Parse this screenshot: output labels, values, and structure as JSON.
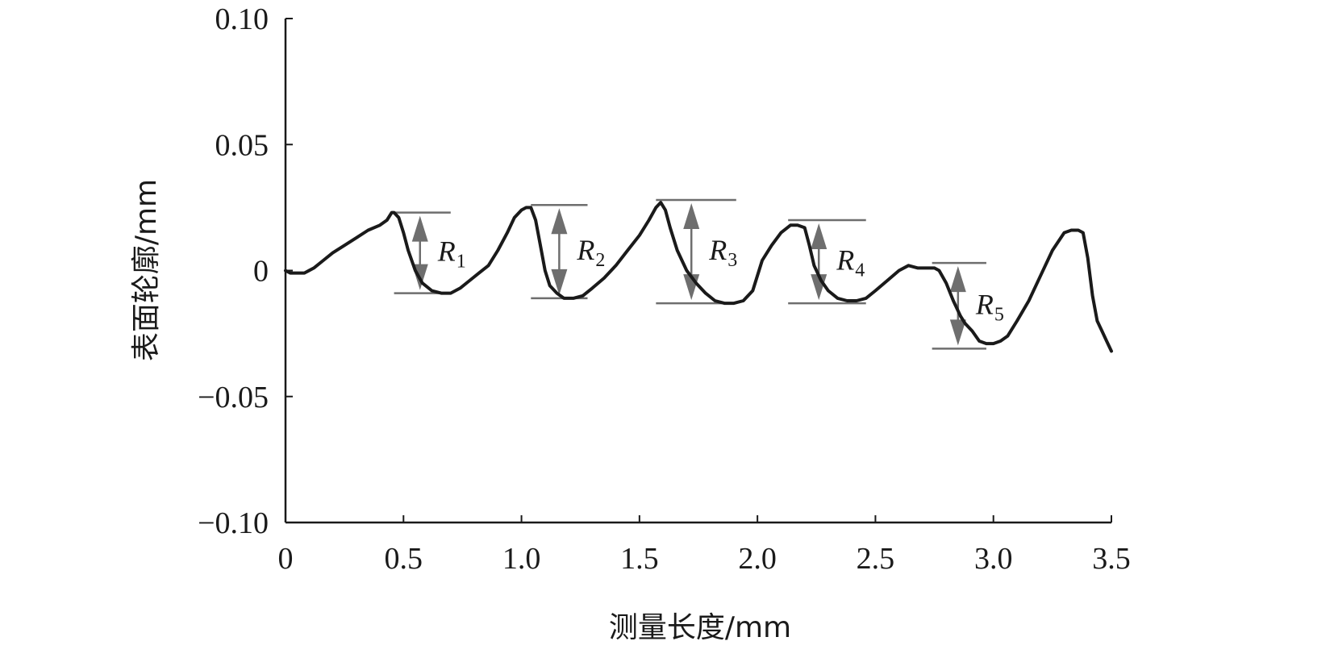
{
  "chart_data": {
    "type": "line",
    "xlabel": "测量长度/mm",
    "ylabel": "表面轮廓/mm",
    "xlim": [
      0,
      3.5
    ],
    "ylim": [
      -0.1,
      0.1
    ],
    "x_ticks": [
      "0",
      "0.5",
      "1.0",
      "1.5",
      "2.0",
      "2.5",
      "3.0",
      "3.5"
    ],
    "x_tick_values": [
      0,
      0.5,
      1.0,
      1.5,
      2.0,
      2.5,
      3.0,
      3.5
    ],
    "y_ticks": [
      "0.10",
      "0.05",
      "0",
      "−0.05",
      "−0.10"
    ],
    "y_tick_values": [
      0.1,
      0.05,
      0,
      -0.05,
      -0.1
    ],
    "grid": false,
    "line_color": "#1a1a1a",
    "annotation_color": "#6e6e6e",
    "series": [
      {
        "x": [
          0.0,
          0.02,
          0.05,
          0.08,
          0.12,
          0.16,
          0.2,
          0.25,
          0.3,
          0.35,
          0.4,
          0.43,
          0.45,
          0.46,
          0.48,
          0.5,
          0.52,
          0.55,
          0.58,
          0.62,
          0.66,
          0.7,
          0.74,
          0.78,
          0.82,
          0.86,
          0.9,
          0.94,
          0.97,
          1.0,
          1.02,
          1.04,
          1.06,
          1.08,
          1.1,
          1.12,
          1.15,
          1.18,
          1.22,
          1.26,
          1.3,
          1.35,
          1.4,
          1.45,
          1.5,
          1.54,
          1.57,
          1.59,
          1.61,
          1.63,
          1.66,
          1.7,
          1.74,
          1.78,
          1.82,
          1.86,
          1.9,
          1.94,
          1.98,
          2.02,
          2.06,
          2.1,
          2.14,
          2.17,
          2.2,
          2.22,
          2.24,
          2.27,
          2.3,
          2.34,
          2.38,
          2.42,
          2.46,
          2.5,
          2.55,
          2.6,
          2.64,
          2.68,
          2.72,
          2.75,
          2.77,
          2.8,
          2.83,
          2.86,
          2.88,
          2.91,
          2.94,
          2.97,
          3.0,
          3.03,
          3.06,
          3.1,
          3.15,
          3.2,
          3.25,
          3.3,
          3.33,
          3.36,
          3.38,
          3.4,
          3.42,
          3.44,
          3.46,
          3.48,
          3.5
        ],
        "y": [
          0.0,
          -0.001,
          -0.001,
          -0.001,
          0.001,
          0.004,
          0.007,
          0.01,
          0.013,
          0.016,
          0.018,
          0.02,
          0.023,
          0.023,
          0.021,
          0.015,
          0.008,
          0.0,
          -0.005,
          -0.008,
          -0.009,
          -0.009,
          -0.007,
          -0.004,
          -0.001,
          0.002,
          0.008,
          0.015,
          0.021,
          0.024,
          0.025,
          0.025,
          0.02,
          0.01,
          0.0,
          -0.006,
          -0.009,
          -0.011,
          -0.011,
          -0.01,
          -0.007,
          -0.003,
          0.002,
          0.008,
          0.014,
          0.02,
          0.025,
          0.027,
          0.024,
          0.017,
          0.008,
          0.0,
          -0.005,
          -0.009,
          -0.012,
          -0.013,
          -0.013,
          -0.012,
          -0.008,
          0.004,
          0.01,
          0.015,
          0.018,
          0.018,
          0.017,
          0.01,
          0.002,
          -0.004,
          -0.008,
          -0.011,
          -0.012,
          -0.012,
          -0.011,
          -0.008,
          -0.004,
          0.0,
          0.002,
          0.001,
          0.001,
          0.001,
          0.0,
          -0.005,
          -0.012,
          -0.018,
          -0.021,
          -0.024,
          -0.028,
          -0.029,
          -0.029,
          -0.028,
          -0.026,
          -0.02,
          -0.012,
          -0.002,
          0.008,
          0.015,
          0.016,
          0.016,
          0.015,
          0.005,
          -0.01,
          -0.02,
          -0.024,
          -0.028,
          -0.032
        ]
      }
    ],
    "annotations": [
      {
        "label": "R",
        "sub": "1",
        "x_arrow": 0.57,
        "x_line": [
          0.46,
          0.7
        ],
        "y_top": 0.023,
        "y_bottom": -0.009
      },
      {
        "label": "R",
        "sub": "2",
        "x_arrow": 1.16,
        "x_line": [
          1.04,
          1.28
        ],
        "y_top": 0.026,
        "y_bottom": -0.011
      },
      {
        "label": "R",
        "sub": "3",
        "x_arrow": 1.72,
        "x_line": [
          1.57,
          1.91
        ],
        "y_top": 0.028,
        "y_bottom": -0.013
      },
      {
        "label": "R",
        "sub": "4",
        "x_arrow": 2.26,
        "x_line": [
          2.13,
          2.46
        ],
        "y_top": 0.02,
        "y_bottom": -0.013
      },
      {
        "label": "R",
        "sub": "5",
        "x_arrow": 2.85,
        "x_line": [
          2.74,
          2.97
        ],
        "y_top": 0.003,
        "y_bottom": -0.031
      }
    ]
  }
}
